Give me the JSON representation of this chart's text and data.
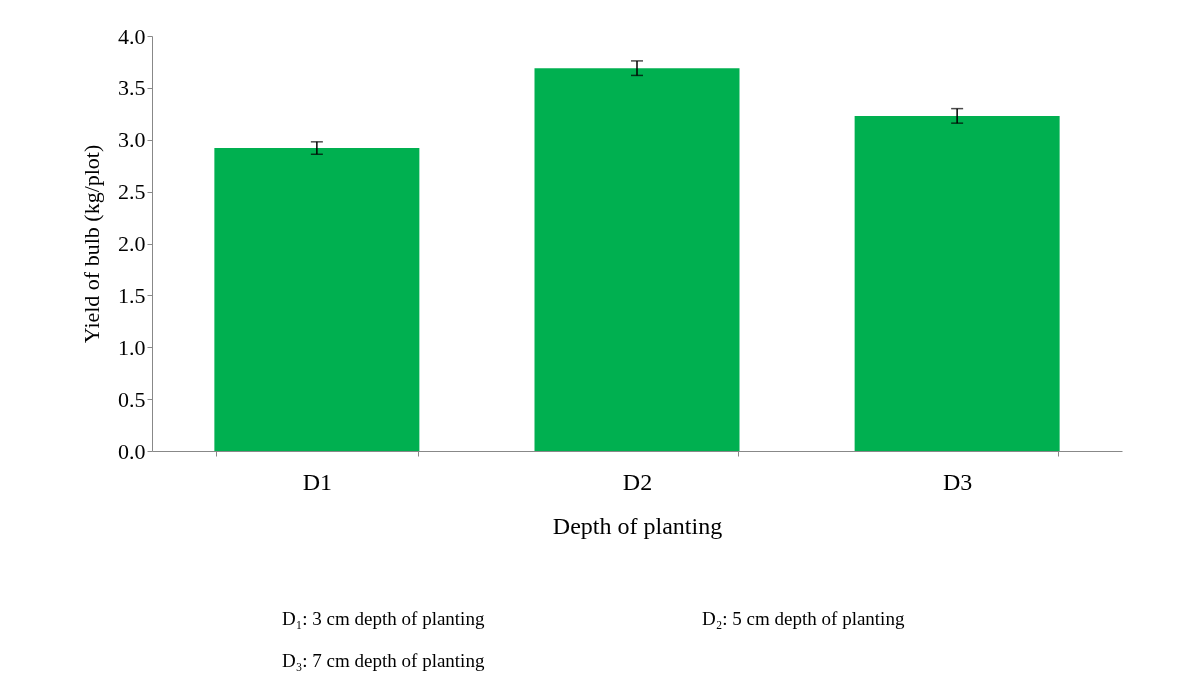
{
  "chart_data": {
    "type": "bar",
    "xlabel": "Depth of planting",
    "ylabel": "Yield of bulb (kg/plot)",
    "categories": [
      "D1",
      "D2",
      "D3"
    ],
    "values": [
      2.92,
      3.69,
      3.23
    ],
    "errors": [
      0.06,
      0.07,
      0.07
    ],
    "color": "#00b050",
    "ylim": [
      0,
      4
    ],
    "yticks": [
      {
        "value": 0,
        "label": "0.0"
      },
      {
        "value": 0.5,
        "label": "0.5"
      },
      {
        "value": 1,
        "label": "1.0"
      },
      {
        "value": 1.5,
        "label": "1.5"
      },
      {
        "value": 2,
        "label": "2.0"
      },
      {
        "value": 2.5,
        "label": "2.5"
      },
      {
        "value": 3,
        "label": "3.0"
      },
      {
        "value": 3.5,
        "label": "3.5"
      },
      {
        "value": 4,
        "label": "4.0"
      }
    ],
    "grid": false,
    "annotations": [
      "D₁: 3 cm depth of planting",
      "D₂: 5 cm depth of planting",
      "D₃: 7 cm depth of planting"
    ]
  }
}
